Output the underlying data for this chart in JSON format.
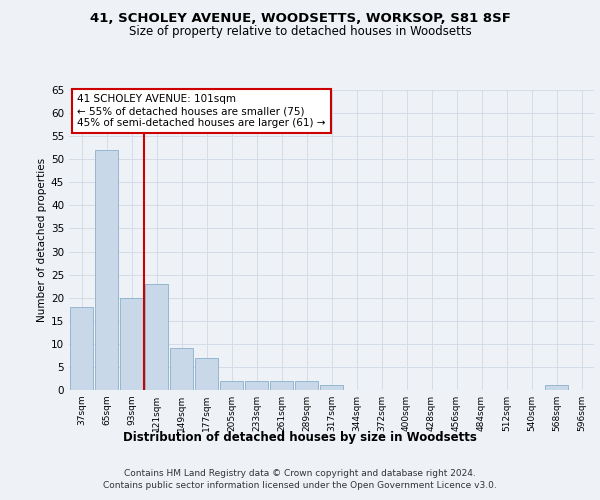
{
  "title1": "41, SCHOLEY AVENUE, WOODSETTS, WORKSOP, S81 8SF",
  "title2": "Size of property relative to detached houses in Woodsetts",
  "xlabel": "Distribution of detached houses by size in Woodsetts",
  "ylabel": "Number of detached properties",
  "footer1": "Contains HM Land Registry data © Crown copyright and database right 2024.",
  "footer2": "Contains public sector information licensed under the Open Government Licence v3.0.",
  "annotation_line1": "41 SCHOLEY AVENUE: 101sqm",
  "annotation_line2": "← 55% of detached houses are smaller (75)",
  "annotation_line3": "45% of semi-detached houses are larger (61) →",
  "bar_color": "#c8d8e8",
  "bar_edge_color": "#8ab0cc",
  "vline_color": "#cc0000",
  "annotation_box_color": "#ffffff",
  "annotation_box_edge": "#cc0000",
  "categories": [
    "37sqm",
    "65sqm",
    "93sqm",
    "121sqm",
    "149sqm",
    "177sqm",
    "205sqm",
    "233sqm",
    "261sqm",
    "289sqm",
    "317sqm",
    "344sqm",
    "372sqm",
    "400sqm",
    "428sqm",
    "456sqm",
    "484sqm",
    "512sqm",
    "540sqm",
    "568sqm",
    "596sqm"
  ],
  "values": [
    18,
    52,
    20,
    23,
    9,
    7,
    2,
    2,
    2,
    2,
    1,
    0,
    0,
    0,
    0,
    0,
    0,
    0,
    0,
    1,
    0
  ],
  "vline_x": 2.5,
  "ylim": [
    0,
    65
  ],
  "yticks": [
    0,
    5,
    10,
    15,
    20,
    25,
    30,
    35,
    40,
    45,
    50,
    55,
    60,
    65
  ],
  "background_color": "#eef2f7",
  "grid_color": "#d0d8e4"
}
